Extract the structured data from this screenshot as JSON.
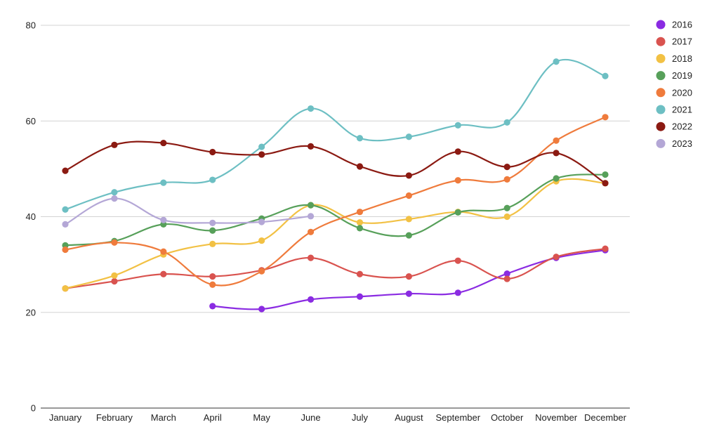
{
  "chart_data": {
    "type": "line",
    "title": "",
    "xlabel": "",
    "ylabel": "",
    "categories": [
      "January",
      "February",
      "March",
      "April",
      "May",
      "June",
      "July",
      "August",
      "September",
      "October",
      "November",
      "December"
    ],
    "ylim": [
      0,
      80
    ],
    "yticks": [
      0,
      20,
      40,
      60,
      80
    ],
    "grid": true,
    "legend_position": "right",
    "smooth": true,
    "series": [
      {
        "name": "2016",
        "color": "#8a2be2",
        "values": [
          null,
          null,
          null,
          21.3,
          20.7,
          22.7,
          23.3,
          23.9,
          24.1,
          28.1,
          31.4,
          33.0
        ]
      },
      {
        "name": "2017",
        "color": "#d9534f",
        "values": [
          25.0,
          26.5,
          28.0,
          27.5,
          28.8,
          31.4,
          28.0,
          27.5,
          30.8,
          27.0,
          31.6,
          33.3
        ]
      },
      {
        "name": "2018",
        "color": "#f2c144",
        "values": [
          25.0,
          27.7,
          32.1,
          34.3,
          35.0,
          42.4,
          38.8,
          39.5,
          41.0,
          40.0,
          47.4,
          47.0
        ]
      },
      {
        "name": "2019",
        "color": "#57a05a",
        "values": [
          34.0,
          34.9,
          38.4,
          37.1,
          39.6,
          42.4,
          37.6,
          36.1,
          40.9,
          41.8,
          48.0,
          48.8
        ]
      },
      {
        "name": "2020",
        "color": "#ef7b3c",
        "values": [
          33.1,
          34.6,
          32.7,
          25.8,
          28.6,
          36.8,
          41.0,
          44.4,
          47.6,
          47.8,
          55.9,
          60.8
        ]
      },
      {
        "name": "2021",
        "color": "#6dbfc3",
        "values": [
          41.5,
          45.1,
          47.1,
          47.7,
          54.6,
          62.6,
          56.4,
          56.7,
          59.1,
          59.7,
          72.4,
          69.4
        ]
      },
      {
        "name": "2022",
        "color": "#8b1a12",
        "values": [
          49.6,
          55.0,
          55.4,
          53.5,
          53.0,
          54.7,
          50.5,
          48.6,
          53.6,
          50.4,
          53.3,
          47.0
        ]
      },
      {
        "name": "2023",
        "color": "#b4a7d6",
        "values": [
          38.4,
          43.8,
          39.3,
          38.7,
          38.9,
          40.1,
          null,
          null,
          null,
          null,
          null,
          null
        ]
      }
    ]
  }
}
